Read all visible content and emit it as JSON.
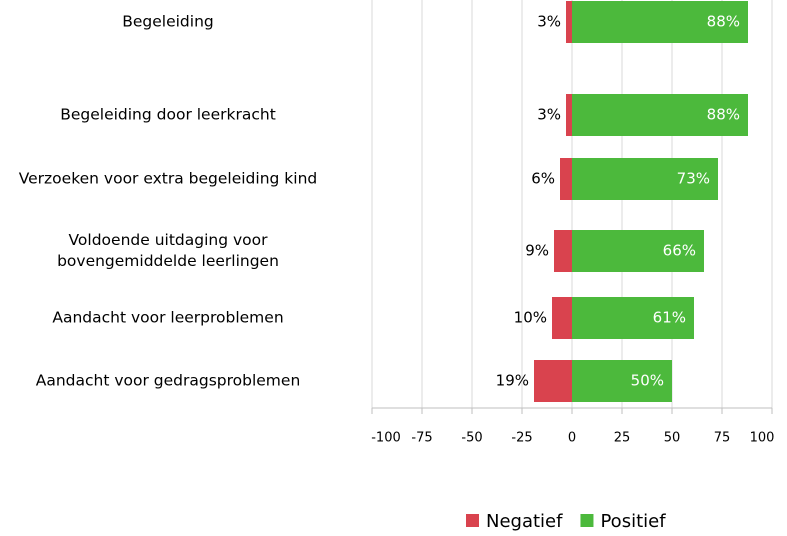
{
  "chart_data": {
    "type": "diverging-bar",
    "categories": [
      "Begeleiding",
      "Begeleiding door leerkracht",
      "Verzoeken voor extra begeleiding kind",
      "Voldoende uitdaging voor bovengemiddelde leerlingen",
      "Aandacht voor leerproblemen",
      "Aandacht voor gedragsproblemen"
    ],
    "series": [
      {
        "name": "Negatief",
        "color": "#d9434e",
        "values": [
          -3,
          -3,
          -6,
          -9,
          -10,
          -19
        ],
        "value_labels": [
          "3%",
          "3%",
          "6%",
          "9%",
          "10%",
          "19%"
        ]
      },
      {
        "name": "Positief",
        "color": "#4cb93c",
        "values": [
          88,
          88,
          73,
          66,
          61,
          50
        ],
        "value_labels": [
          "88%",
          "88%",
          "73%",
          "66%",
          "61%",
          "50%"
        ]
      }
    ],
    "xlim": [
      -100,
      100
    ],
    "xticks": [
      -100,
      -75,
      -50,
      -25,
      0,
      25,
      50,
      75,
      100
    ],
    "grid": true,
    "legend": "bottom"
  }
}
